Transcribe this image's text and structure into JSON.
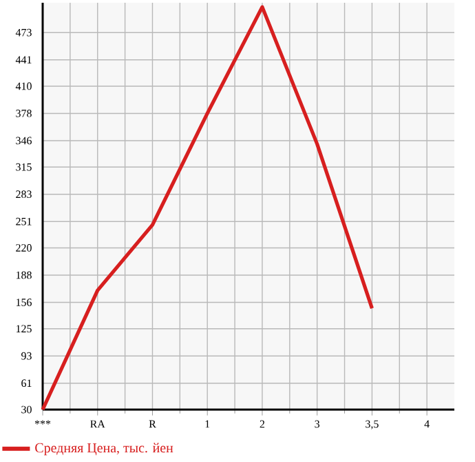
{
  "chart_data": {
    "type": "line",
    "categories": [
      "***",
      "RA",
      "R",
      "1",
      "2",
      "3",
      "3,5",
      "4"
    ],
    "series": [
      {
        "name": "Средняя Цена, тыс. йен",
        "color": "#d71f1f",
        "values": [
          30,
          170,
          247,
          378,
          503,
          342,
          149,
          null
        ]
      }
    ],
    "ylim": [
      30,
      508
    ],
    "yticks": [
      30,
      61,
      93,
      125,
      156,
      188,
      220,
      251,
      283,
      315,
      346,
      378,
      410,
      441,
      473
    ],
    "grid": true,
    "legend": "bottom",
    "marker": "none",
    "line_style": "solid"
  }
}
